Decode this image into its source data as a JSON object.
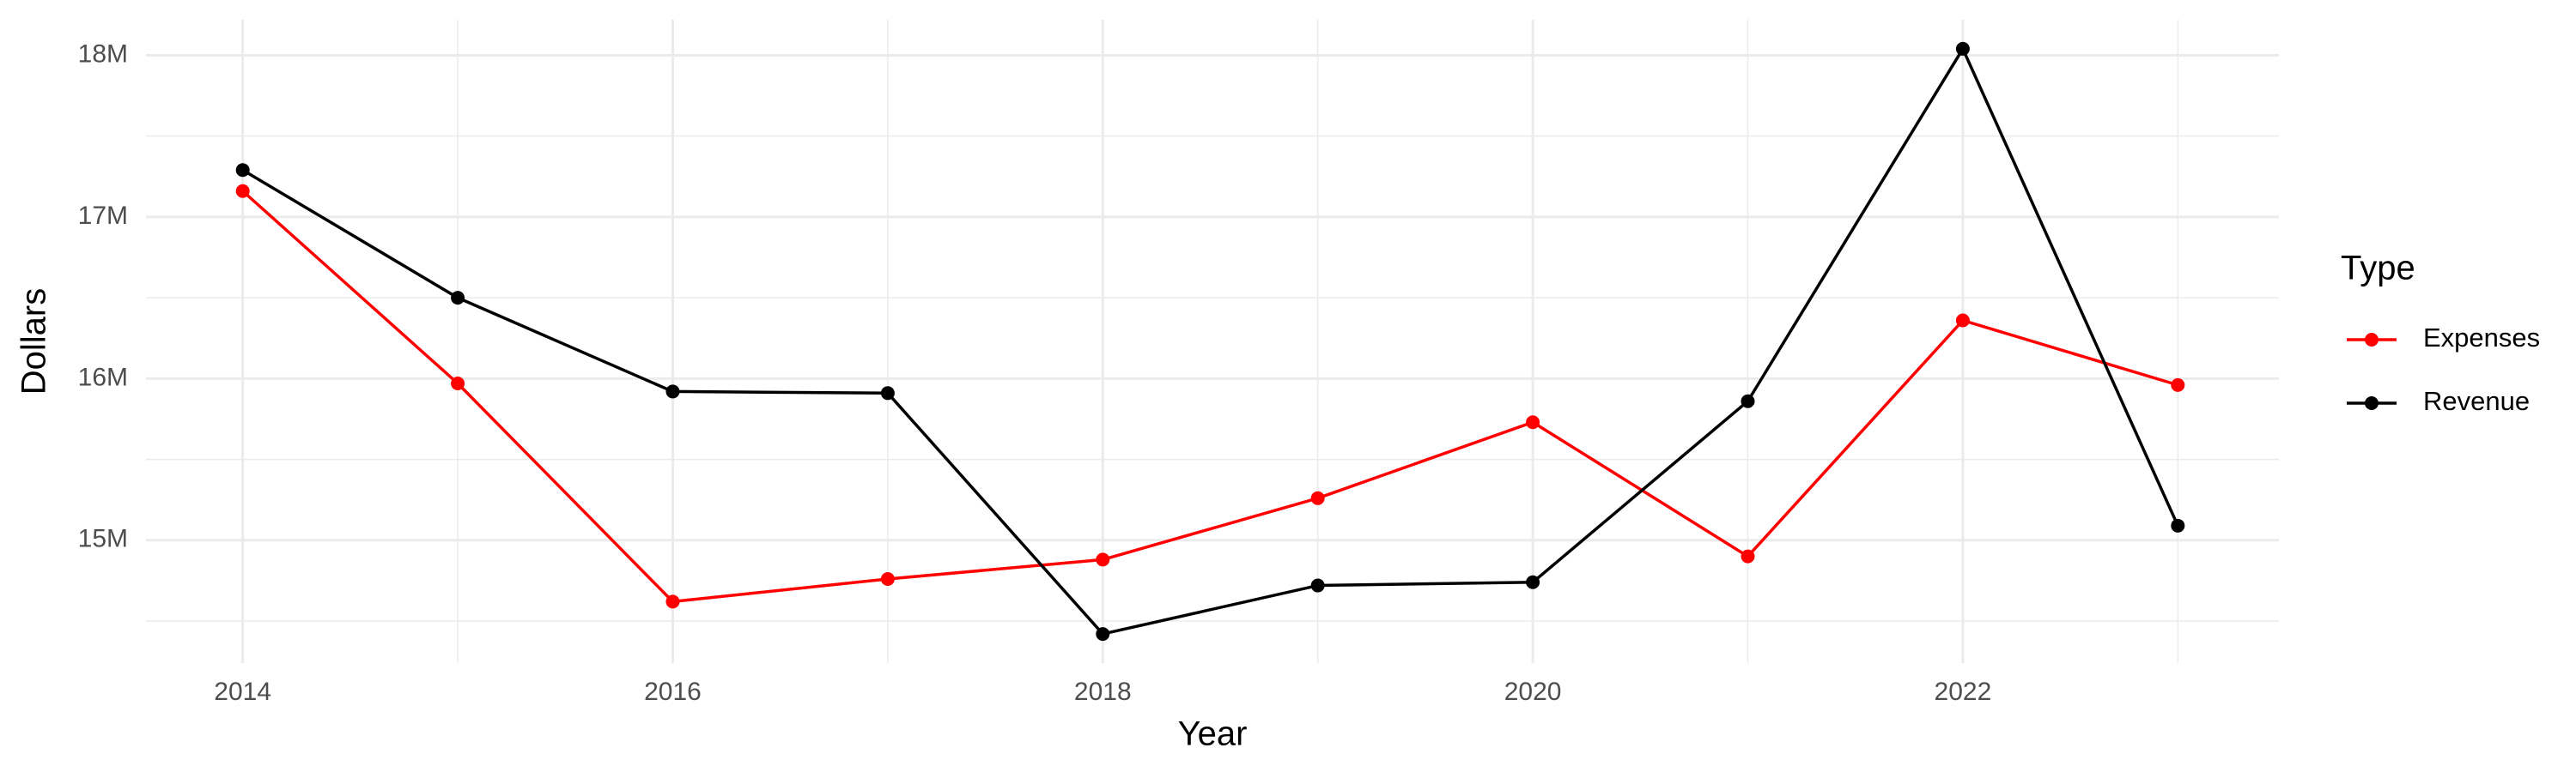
{
  "chart_data": {
    "type": "line",
    "x_label": "Year",
    "y_label": "Dollars",
    "legend_title": "Type",
    "x": [
      2014,
      2015,
      2016,
      2017,
      2018,
      2019,
      2020,
      2021,
      2022,
      2023
    ],
    "series": [
      {
        "name": "Expenses",
        "color": "#ff0000",
        "values": [
          17160000,
          15970000,
          14620000,
          14760000,
          14880000,
          15260000,
          15730000,
          14900000,
          16360000,
          15960000
        ]
      },
      {
        "name": "Revenue",
        "color": "#000000",
        "values": [
          17290000,
          16500000,
          15920000,
          15910000,
          14420000,
          14720000,
          14740000,
          15860000,
          18040000,
          15090000
        ]
      }
    ],
    "xlim": [
      2013.55,
      2023.47
    ],
    "xticks": [
      2014,
      2016,
      2018,
      2020,
      2022
    ],
    "ylim": [
      14240000,
      18220000
    ],
    "yticks": [
      {
        "value": 15000000,
        "label": "15M"
      },
      {
        "value": 16000000,
        "label": "16M"
      },
      {
        "value": 17000000,
        "label": "17M"
      },
      {
        "value": 18000000,
        "label": "18M"
      }
    ],
    "grid": true,
    "legend_position": "right"
  }
}
